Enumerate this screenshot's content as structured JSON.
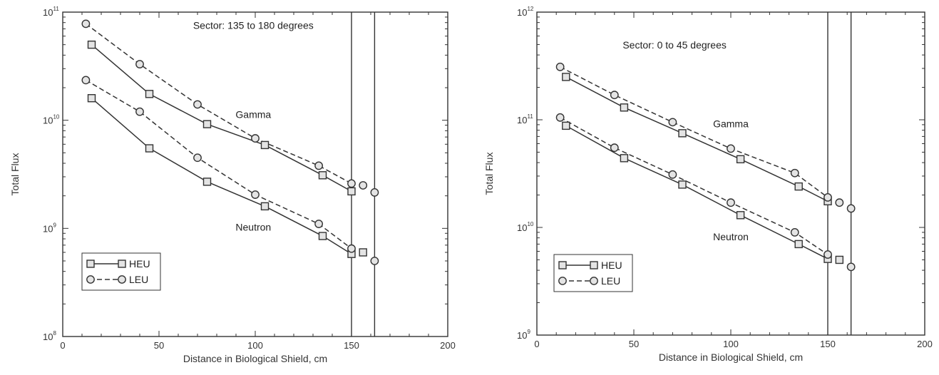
{
  "chart_data": [
    {
      "type": "line",
      "yscale": "log",
      "xlim": [
        0,
        200
      ],
      "ylim": [
        100000000.0,
        100000000000.0
      ],
      "xticks": [
        0,
        50,
        100,
        150,
        200
      ],
      "ytick_labels": [
        {
          "value": 100000000000.0,
          "base": "10",
          "exp": "11"
        },
        {
          "value": 10000000000.0,
          "base": "10",
          "exp": "10"
        },
        {
          "value": 1000000000.0,
          "base": "10",
          "exp": "9"
        },
        {
          "value": 100000000.0,
          "base": "10",
          "exp": "8"
        }
      ],
      "xlabel": "Distance in Biological Shield, cm",
      "ylabel": "Total Flux",
      "annotations": [
        {
          "text": "Sector: 135 to 180 degrees",
          "x": 99,
          "y": 70000000000.0
        },
        {
          "text": "Gamma",
          "x": 99,
          "y": 10500000000.0
        },
        {
          "text": "Neutron",
          "x": 99,
          "y": 950000000.0
        }
      ],
      "vertical_lines": [
        150,
        162
      ],
      "legend": {
        "position": "bottom-left",
        "entries": [
          "HEU",
          "LEU"
        ]
      },
      "series": [
        {
          "name": "HEU",
          "group": "Gamma",
          "style": "solid",
          "marker": "square",
          "x": [
            15,
            45,
            75,
            105,
            135,
            150
          ],
          "y": [
            50000000000.0,
            17500000000.0,
            9200000000.0,
            5900000000.0,
            3100000000.0,
            2200000000.0
          ]
        },
        {
          "name": "LEU",
          "group": "Gamma",
          "style": "dashed",
          "marker": "circle",
          "x": [
            12,
            40,
            70,
            100,
            133,
            150
          ],
          "y": [
            78000000000.0,
            33000000000.0,
            14000000000.0,
            6800000000.0,
            3800000000.0,
            2600000000.0
          ]
        },
        {
          "name": "HEU",
          "group": "Gamma",
          "style": "none",
          "marker": "circle",
          "x": [
            156,
            162
          ],
          "y": [
            2500000000.0,
            2150000000.0
          ]
        },
        {
          "name": "HEU",
          "group": "Neutron",
          "style": "solid",
          "marker": "square",
          "x": [
            15,
            45,
            75,
            105,
            135,
            150
          ],
          "y": [
            16000000000.0,
            5500000000.0,
            2700000000.0,
            1600000000.0,
            850000000.0,
            580000000.0
          ]
        },
        {
          "name": "LEU",
          "group": "Neutron",
          "style": "dashed",
          "marker": "circle",
          "x": [
            12,
            40,
            70,
            100,
            133,
            150
          ],
          "y": [
            23500000000.0,
            12000000000.0,
            4500000000.0,
            2050000000.0,
            1100000000.0,
            650000000.0
          ]
        },
        {
          "name": "HEU",
          "group": "Neutron",
          "style": "none",
          "marker": "square",
          "x": [
            156
          ],
          "y": [
            600000000.0
          ]
        },
        {
          "name": "LEU",
          "group": "Neutron",
          "style": "none",
          "marker": "circle",
          "x": [
            162
          ],
          "y": [
            500000000.0
          ]
        }
      ]
    },
    {
      "type": "line",
      "yscale": "log",
      "xlim": [
        0,
        200
      ],
      "ylim": [
        1000000000.0,
        1000000000000.0
      ],
      "xticks": [
        0,
        50,
        100,
        150,
        200
      ],
      "ytick_labels": [
        {
          "value": 1000000000000.0,
          "base": "10",
          "exp": "12"
        },
        {
          "value": 100000000000.0,
          "base": "10",
          "exp": "11"
        },
        {
          "value": 10000000000.0,
          "base": "10",
          "exp": "10"
        },
        {
          "value": 1000000000.0,
          "base": "10",
          "exp": "9"
        }
      ],
      "xlabel": "Distance in Biological Shield, cm",
      "ylabel": "Total Flux",
      "annotations": [
        {
          "text": "Sector: 0 to 45 degrees",
          "x": 71,
          "y": 460000000000.0
        },
        {
          "text": "Gamma",
          "x": 100,
          "y": 85000000000.0
        },
        {
          "text": "Neutron",
          "x": 100,
          "y": 7600000000.0
        }
      ],
      "vertical_lines": [
        150,
        162
      ],
      "legend": {
        "position": "bottom-left",
        "entries": [
          "HEU",
          "LEU"
        ]
      },
      "series": [
        {
          "name": "HEU",
          "group": "Gamma",
          "style": "solid",
          "marker": "square",
          "x": [
            15,
            45,
            75,
            105,
            135,
            150
          ],
          "y": [
            250000000000.0,
            130000000000.0,
            75000000000.0,
            43000000000.0,
            24000000000.0,
            17500000000.0
          ]
        },
        {
          "name": "LEU",
          "group": "Gamma",
          "style": "dashed",
          "marker": "circle",
          "x": [
            12,
            40,
            70,
            100,
            133,
            150
          ],
          "y": [
            310000000000.0,
            170000000000.0,
            95000000000.0,
            54000000000.0,
            32000000000.0,
            19000000000.0
          ]
        },
        {
          "name": "LEU",
          "group": "Gamma",
          "style": "none",
          "marker": "circle",
          "x": [
            156,
            162
          ],
          "y": [
            17000000000.0,
            15000000000.0
          ]
        },
        {
          "name": "HEU",
          "group": "Neutron",
          "style": "solid",
          "marker": "square",
          "x": [
            15,
            45,
            75,
            105,
            135,
            150
          ],
          "y": [
            88000000000.0,
            44000000000.0,
            25000000000.0,
            13000000000.0,
            7000000000.0,
            5100000000.0
          ]
        },
        {
          "name": "LEU",
          "group": "Neutron",
          "style": "dashed",
          "marker": "circle",
          "x": [
            12,
            40,
            70,
            100,
            133,
            150
          ],
          "y": [
            105000000000.0,
            55000000000.0,
            31000000000.0,
            17000000000.0,
            9000000000.0,
            5600000000.0
          ]
        },
        {
          "name": "HEU",
          "group": "Neutron",
          "style": "none",
          "marker": "square",
          "x": [
            156
          ],
          "y": [
            5000000000.0
          ]
        },
        {
          "name": "LEU",
          "group": "Neutron",
          "style": "none",
          "marker": "circle",
          "x": [
            162
          ],
          "y": [
            4300000000.0
          ]
        }
      ]
    }
  ]
}
